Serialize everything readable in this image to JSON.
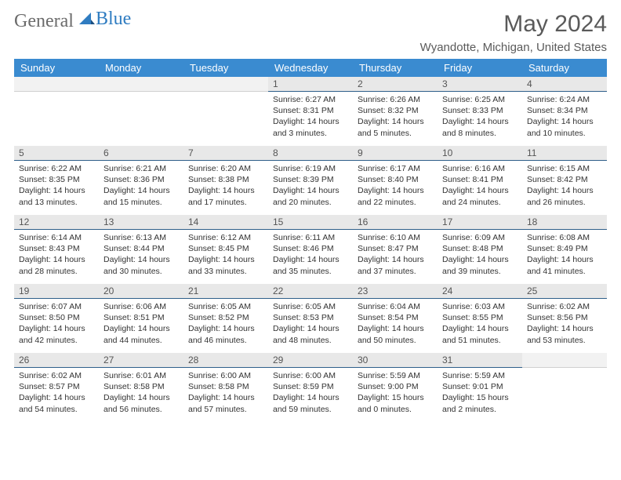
{
  "brand": {
    "part1": "General",
    "part2": "Blue"
  },
  "title": "May 2024",
  "location": "Wyandotte, Michigan, United States",
  "colors": {
    "header_bg": "#3a8bd0",
    "header_text": "#ffffff",
    "daynum_bg": "#e8e8e8",
    "daynum_border": "#2f5f8a",
    "brand_gray": "#6b6b6b",
    "brand_blue": "#2f7cc1"
  },
  "weekdays": [
    "Sunday",
    "Monday",
    "Tuesday",
    "Wednesday",
    "Thursday",
    "Friday",
    "Saturday"
  ],
  "weeks": [
    [
      null,
      null,
      null,
      {
        "n": "1",
        "sunrise": "6:27 AM",
        "sunset": "8:31 PM",
        "daylight": "14 hours and 3 minutes."
      },
      {
        "n": "2",
        "sunrise": "6:26 AM",
        "sunset": "8:32 PM",
        "daylight": "14 hours and 5 minutes."
      },
      {
        "n": "3",
        "sunrise": "6:25 AM",
        "sunset": "8:33 PM",
        "daylight": "14 hours and 8 minutes."
      },
      {
        "n": "4",
        "sunrise": "6:24 AM",
        "sunset": "8:34 PM",
        "daylight": "14 hours and 10 minutes."
      }
    ],
    [
      {
        "n": "5",
        "sunrise": "6:22 AM",
        "sunset": "8:35 PM",
        "daylight": "14 hours and 13 minutes."
      },
      {
        "n": "6",
        "sunrise": "6:21 AM",
        "sunset": "8:36 PM",
        "daylight": "14 hours and 15 minutes."
      },
      {
        "n": "7",
        "sunrise": "6:20 AM",
        "sunset": "8:38 PM",
        "daylight": "14 hours and 17 minutes."
      },
      {
        "n": "8",
        "sunrise": "6:19 AM",
        "sunset": "8:39 PM",
        "daylight": "14 hours and 20 minutes."
      },
      {
        "n": "9",
        "sunrise": "6:17 AM",
        "sunset": "8:40 PM",
        "daylight": "14 hours and 22 minutes."
      },
      {
        "n": "10",
        "sunrise": "6:16 AM",
        "sunset": "8:41 PM",
        "daylight": "14 hours and 24 minutes."
      },
      {
        "n": "11",
        "sunrise": "6:15 AM",
        "sunset": "8:42 PM",
        "daylight": "14 hours and 26 minutes."
      }
    ],
    [
      {
        "n": "12",
        "sunrise": "6:14 AM",
        "sunset": "8:43 PM",
        "daylight": "14 hours and 28 minutes."
      },
      {
        "n": "13",
        "sunrise": "6:13 AM",
        "sunset": "8:44 PM",
        "daylight": "14 hours and 30 minutes."
      },
      {
        "n": "14",
        "sunrise": "6:12 AM",
        "sunset": "8:45 PM",
        "daylight": "14 hours and 33 minutes."
      },
      {
        "n": "15",
        "sunrise": "6:11 AM",
        "sunset": "8:46 PM",
        "daylight": "14 hours and 35 minutes."
      },
      {
        "n": "16",
        "sunrise": "6:10 AM",
        "sunset": "8:47 PM",
        "daylight": "14 hours and 37 minutes."
      },
      {
        "n": "17",
        "sunrise": "6:09 AM",
        "sunset": "8:48 PM",
        "daylight": "14 hours and 39 minutes."
      },
      {
        "n": "18",
        "sunrise": "6:08 AM",
        "sunset": "8:49 PM",
        "daylight": "14 hours and 41 minutes."
      }
    ],
    [
      {
        "n": "19",
        "sunrise": "6:07 AM",
        "sunset": "8:50 PM",
        "daylight": "14 hours and 42 minutes."
      },
      {
        "n": "20",
        "sunrise": "6:06 AM",
        "sunset": "8:51 PM",
        "daylight": "14 hours and 44 minutes."
      },
      {
        "n": "21",
        "sunrise": "6:05 AM",
        "sunset": "8:52 PM",
        "daylight": "14 hours and 46 minutes."
      },
      {
        "n": "22",
        "sunrise": "6:05 AM",
        "sunset": "8:53 PM",
        "daylight": "14 hours and 48 minutes."
      },
      {
        "n": "23",
        "sunrise": "6:04 AM",
        "sunset": "8:54 PM",
        "daylight": "14 hours and 50 minutes."
      },
      {
        "n": "24",
        "sunrise": "6:03 AM",
        "sunset": "8:55 PM",
        "daylight": "14 hours and 51 minutes."
      },
      {
        "n": "25",
        "sunrise": "6:02 AM",
        "sunset": "8:56 PM",
        "daylight": "14 hours and 53 minutes."
      }
    ],
    [
      {
        "n": "26",
        "sunrise": "6:02 AM",
        "sunset": "8:57 PM",
        "daylight": "14 hours and 54 minutes."
      },
      {
        "n": "27",
        "sunrise": "6:01 AM",
        "sunset": "8:58 PM",
        "daylight": "14 hours and 56 minutes."
      },
      {
        "n": "28",
        "sunrise": "6:00 AM",
        "sunset": "8:58 PM",
        "daylight": "14 hours and 57 minutes."
      },
      {
        "n": "29",
        "sunrise": "6:00 AM",
        "sunset": "8:59 PM",
        "daylight": "14 hours and 59 minutes."
      },
      {
        "n": "30",
        "sunrise": "5:59 AM",
        "sunset": "9:00 PM",
        "daylight": "15 hours and 0 minutes."
      },
      {
        "n": "31",
        "sunrise": "5:59 AM",
        "sunset": "9:01 PM",
        "daylight": "15 hours and 2 minutes."
      },
      null
    ]
  ],
  "labels": {
    "sunrise": "Sunrise:",
    "sunset": "Sunset:",
    "daylight": "Daylight:"
  }
}
